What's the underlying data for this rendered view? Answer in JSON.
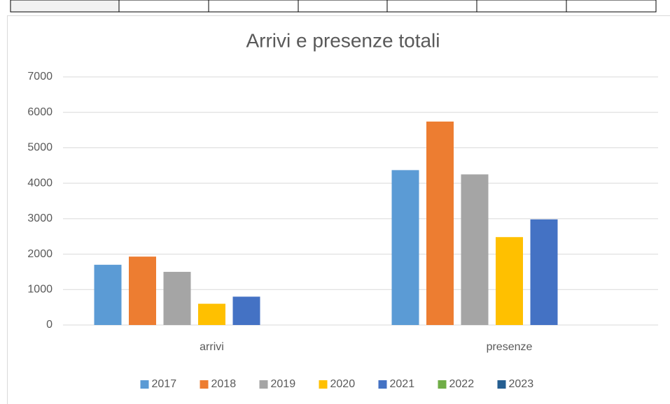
{
  "chart_data": {
    "type": "bar",
    "title": "Arrivi e presenze totali",
    "categories": [
      "arrivi",
      "presenze"
    ],
    "series": [
      {
        "name": "2017",
        "color": "#5b9bd5",
        "values": [
          1700,
          4370
        ]
      },
      {
        "name": "2018",
        "color": "#ed7d31",
        "values": [
          1930,
          5740
        ]
      },
      {
        "name": "2019",
        "color": "#a5a5a5",
        "values": [
          1500,
          4250
        ]
      },
      {
        "name": "2020",
        "color": "#ffc000",
        "values": [
          600,
          2480
        ]
      },
      {
        "name": "2021",
        "color": "#4472c4",
        "values": [
          800,
          2980
        ]
      },
      {
        "name": "2022",
        "color": "#70ad47",
        "values": [
          null,
          null
        ]
      },
      {
        "name": "2023",
        "color": "#255e91",
        "values": [
          null,
          null
        ]
      }
    ],
    "ylim": [
      0,
      7000
    ],
    "yticks": [
      0,
      1000,
      2000,
      3000,
      4000,
      5000,
      6000,
      7000
    ],
    "grid": true,
    "legend": "bottom"
  }
}
